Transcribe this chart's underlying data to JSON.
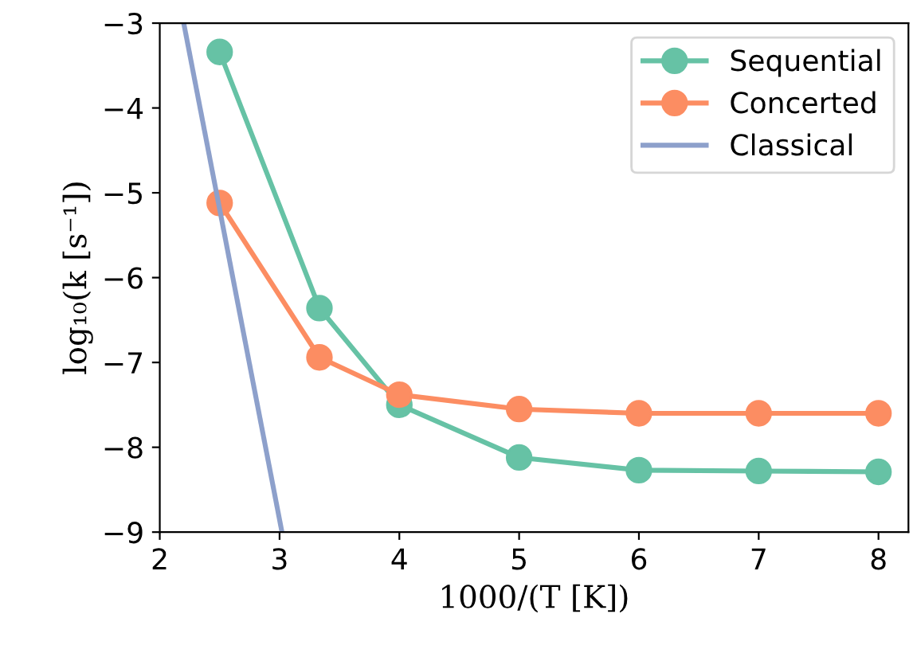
{
  "chart_data": {
    "type": "line",
    "xlabel": "1000/(T [K])",
    "ylabel": "log₁₀(k [s⁻¹])",
    "xlim": [
      2,
      8.25
    ],
    "ylim": [
      -9,
      -3
    ],
    "xticks": [
      2,
      3,
      4,
      5,
      6,
      7,
      8
    ],
    "yticks": [
      -9,
      -8,
      -7,
      -6,
      -5,
      -4,
      -3
    ],
    "grid": false,
    "legend": "top right",
    "series": [
      {
        "name": "Sequential",
        "color": "#66c2a5",
        "marker": "circle",
        "x": [
          2.5,
          3.333,
          4,
          5,
          6,
          7,
          8
        ],
        "values": [
          -3.34,
          -6.36,
          -7.5,
          -8.12,
          -8.27,
          -8.28,
          -8.29
        ]
      },
      {
        "name": "Concerted",
        "color": "#fc8d62",
        "marker": "circle",
        "x": [
          2.5,
          3.333,
          4,
          5,
          6,
          7,
          8
        ],
        "values": [
          -5.12,
          -6.94,
          -7.38,
          -7.55,
          -7.6,
          -7.6,
          -7.6
        ]
      },
      {
        "name": "Classical",
        "color": "#8da0cb",
        "marker": "none",
        "x": [
          2.2,
          3.02
        ],
        "values": [
          -3,
          -9
        ]
      }
    ]
  }
}
